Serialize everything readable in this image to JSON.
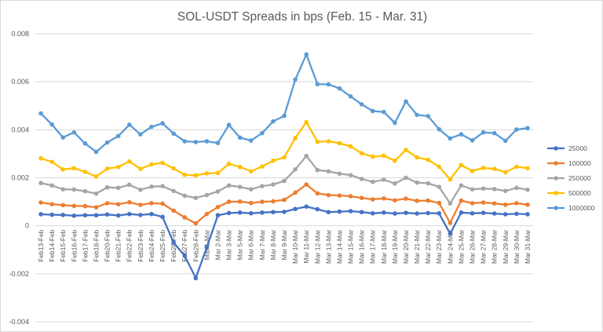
{
  "chart_data": {
    "type": "line",
    "title": "SOL-USDT Spreads in bps (Feb. 15 - Mar. 31)",
    "xlabel": "",
    "ylabel": "",
    "ylim": [
      -0.004,
      0.008
    ],
    "yticks": [
      -0.004,
      -0.002,
      0,
      0.002,
      0.004,
      0.006,
      0.008
    ],
    "ytick_labels": [
      "-0.004",
      "-0.002",
      "0",
      "0.002",
      "0.004",
      "0.006",
      "0.008"
    ],
    "grid": true,
    "legend": "right",
    "categories": [
      "Feb13-Feb",
      "Feb14-Feb",
      "Feb15-Feb",
      "Feb16-Feb",
      "Feb17-Feb",
      "Feb18-Feb",
      "Feb20-Feb",
      "Feb21-Feb",
      "Feb22-Feb",
      "Feb23-Feb",
      "Feb24-Feb",
      "Feb25-Feb",
      "Feb26-Feb",
      "Feb27-Feb",
      "Feb28-Feb",
      "Mar 1-Mar",
      "Mar 2-Mar",
      "Mar 3-Mar",
      "Mar 5-Mar",
      "Mar 6-Mar",
      "Mar 7-Mar",
      "Mar 8-Mar",
      "Mar 9-Mar",
      "Mar 10-Mar",
      "Mar 11-Mar",
      "Mar 12-Mar",
      "Mar 13-Mar",
      "Mar 14-Mar",
      "Mar 15-Mar",
      "Mar 16-Mar",
      "Mar 17-Mar",
      "Mar 18-Mar",
      "Mar 19-Mar",
      "Mar 20-Mar",
      "Mar 21-Mar",
      "Mar 22-Mar",
      "Mar 23-Mar",
      "Mar 24-Mar",
      "Mar 25-Mar",
      "Mar 26-Mar",
      "Mar 27-Mar",
      "Mar 28-Mar",
      "Mar 29-Mar",
      "Mar 30-Mar",
      "Mar 31-Mar"
    ],
    "series": [
      {
        "name": "25000",
        "color": "#4472c4",
        "values": [
          0.00048,
          0.00046,
          0.00045,
          0.00042,
          0.00044,
          0.00044,
          0.00047,
          0.00043,
          0.00049,
          0.00045,
          0.00049,
          0.00037,
          -0.0007,
          -0.00125,
          -0.00218,
          -0.0009,
          0.00044,
          0.00053,
          0.00055,
          0.00052,
          0.00055,
          0.00057,
          0.00058,
          0.0007,
          0.0008,
          0.00069,
          0.00057,
          0.00059,
          0.00061,
          0.00057,
          0.00052,
          0.00055,
          0.00051,
          0.00054,
          0.00051,
          0.00053,
          0.00052,
          -0.00033,
          0.00055,
          0.00052,
          0.00054,
          0.00051,
          0.00048,
          0.0005,
          0.00048
        ]
      },
      {
        "name": "100000",
        "color": "#ed7d31",
        "values": [
          0.00097,
          0.0009,
          0.00086,
          0.00083,
          0.00082,
          0.00077,
          0.00094,
          0.0009,
          0.00098,
          0.00087,
          0.00094,
          0.00092,
          0.00063,
          0.00035,
          0.0001,
          0.00049,
          0.00078,
          0.001,
          0.00101,
          0.00095,
          0.001,
          0.00102,
          0.00108,
          0.00138,
          0.00172,
          0.00135,
          0.00128,
          0.00126,
          0.00123,
          0.00116,
          0.0011,
          0.00114,
          0.00106,
          0.00113,
          0.00104,
          0.00105,
          0.00095,
          0.00012,
          0.00105,
          0.00094,
          0.00097,
          0.00093,
          0.00088,
          0.00094,
          0.00088
        ]
      },
      {
        "name": "250000",
        "color": "#a5a5a5",
        "values": [
          0.00178,
          0.00168,
          0.00152,
          0.00151,
          0.00144,
          0.00134,
          0.0016,
          0.00158,
          0.00171,
          0.0015,
          0.00163,
          0.00165,
          0.00145,
          0.00125,
          0.00116,
          0.00128,
          0.00143,
          0.00168,
          0.00162,
          0.00152,
          0.00165,
          0.00172,
          0.00187,
          0.00235,
          0.00291,
          0.00232,
          0.00227,
          0.00217,
          0.00211,
          0.00195,
          0.00183,
          0.00192,
          0.00176,
          0.002,
          0.0018,
          0.00177,
          0.00162,
          0.00093,
          0.00168,
          0.00152,
          0.00155,
          0.00153,
          0.00145,
          0.00158,
          0.0015
        ]
      },
      {
        "name": "500000",
        "color": "#ffc000",
        "values": [
          0.00281,
          0.00266,
          0.00235,
          0.0024,
          0.00225,
          0.00205,
          0.00238,
          0.00245,
          0.00268,
          0.00237,
          0.00256,
          0.00262,
          0.00239,
          0.00212,
          0.0021,
          0.00218,
          0.0022,
          0.00258,
          0.00245,
          0.00227,
          0.00247,
          0.00271,
          0.00285,
          0.00365,
          0.00432,
          0.0035,
          0.00352,
          0.00344,
          0.00331,
          0.00302,
          0.00288,
          0.00292,
          0.00271,
          0.00316,
          0.00285,
          0.00275,
          0.00246,
          0.00193,
          0.00253,
          0.00228,
          0.00241,
          0.00237,
          0.00223,
          0.00246,
          0.0024
        ]
      },
      {
        "name": "1000000",
        "color": "#5b9bd5",
        "values": [
          0.00468,
          0.00422,
          0.00368,
          0.00389,
          0.00343,
          0.00308,
          0.00347,
          0.00374,
          0.00421,
          0.00381,
          0.00412,
          0.00427,
          0.00384,
          0.00352,
          0.00349,
          0.00352,
          0.00345,
          0.0042,
          0.00367,
          0.00355,
          0.00386,
          0.00435,
          0.00458,
          0.00609,
          0.00714,
          0.0059,
          0.00589,
          0.00572,
          0.00539,
          0.00506,
          0.00478,
          0.00474,
          0.00429,
          0.00518,
          0.00462,
          0.00457,
          0.00402,
          0.00364,
          0.00381,
          0.00356,
          0.00389,
          0.00386,
          0.00354,
          0.00401,
          0.00407
        ]
      }
    ]
  }
}
